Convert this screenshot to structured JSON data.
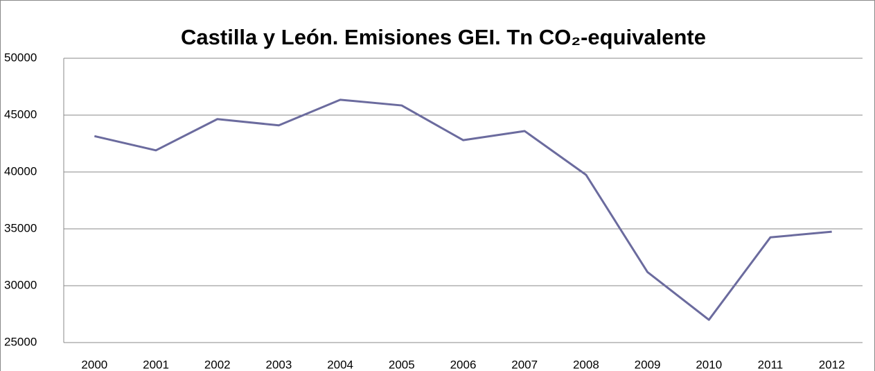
{
  "chart_data": {
    "type": "line",
    "title": "Castilla y León. Emisiones GEI. Tn CO₂-equivalente",
    "categories": [
      "2000",
      "2001",
      "2002",
      "2003",
      "2004",
      "2005",
      "2006",
      "2007",
      "2008",
      "2009",
      "2010",
      "2011",
      "2012"
    ],
    "series": [
      {
        "color": "#6b6b9e",
        "values": [
          43150,
          41900,
          44650,
          44100,
          46350,
          45850,
          42800,
          43600,
          39750,
          31200,
          27000,
          34250,
          34750
        ]
      }
    ],
    "ylim": [
      25000,
      50000
    ],
    "yticks": [
      25000,
      30000,
      35000,
      40000,
      45000,
      50000
    ],
    "grid": true
  }
}
